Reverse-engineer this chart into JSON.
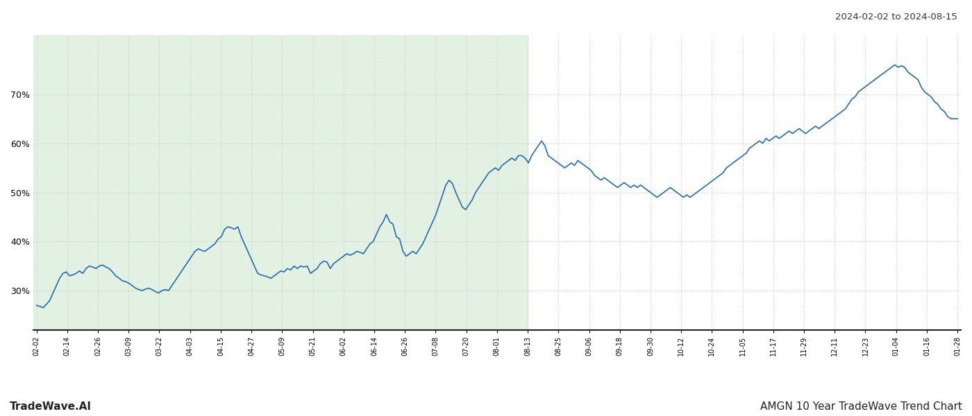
{
  "title_top_right": "2024-02-02 to 2024-08-15",
  "bottom_left": "TradeWave.AI",
  "bottom_right": "AMGN 10 Year TradeWave Trend Chart",
  "line_color": "#1f6cb0",
  "line_width": 1.2,
  "bg_color": "#ffffff",
  "grid_color": "#c8c8c8",
  "grid_style": "dotted",
  "shaded_region_color": "#d4ead4",
  "shaded_region_alpha": 0.65,
  "ylim_min": 22,
  "ylim_max": 82,
  "yticks": [
    30,
    40,
    50,
    60,
    70
  ],
  "xtick_labels": [
    "02-02",
    "02-14",
    "02-26",
    "03-09",
    "03-22",
    "04-03",
    "04-15",
    "04-27",
    "05-09",
    "05-21",
    "06-02",
    "06-14",
    "06-26",
    "07-08",
    "07-20",
    "08-01",
    "08-13",
    "08-25",
    "09-06",
    "09-18",
    "09-30",
    "10-12",
    "10-24",
    "11-05",
    "11-17",
    "11-29",
    "12-11",
    "12-23",
    "01-04",
    "01-16",
    "01-28"
  ],
  "shade_end_label": "08-13",
  "data_y": [
    27.0,
    26.8,
    26.5,
    27.2,
    28.0,
    29.5,
    31.0,
    32.5,
    33.5,
    33.8,
    33.0,
    33.2,
    33.5,
    34.0,
    33.5,
    34.5,
    35.0,
    34.8,
    34.5,
    35.0,
    35.2,
    34.8,
    34.5,
    33.8,
    33.0,
    32.5,
    32.0,
    31.8,
    31.5,
    31.0,
    30.5,
    30.2,
    30.0,
    30.3,
    30.5,
    30.2,
    29.8,
    29.5,
    30.0,
    30.2,
    30.0,
    31.0,
    32.0,
    33.0,
    34.0,
    35.0,
    36.0,
    37.0,
    38.0,
    38.5,
    38.2,
    38.0,
    38.5,
    39.0,
    39.5,
    40.5,
    41.0,
    42.5,
    43.0,
    42.8,
    42.5,
    43.0,
    41.0,
    39.5,
    38.0,
    36.5,
    35.0,
    33.5,
    33.2,
    33.0,
    32.8,
    32.5,
    33.0,
    33.5,
    34.0,
    33.8,
    34.5,
    34.2,
    35.0,
    34.5,
    35.0,
    34.8,
    35.0,
    33.5,
    34.0,
    34.5,
    35.5,
    36.0,
    35.8,
    34.5,
    35.5,
    36.0,
    36.5,
    37.0,
    37.5,
    37.2,
    37.5,
    38.0,
    37.8,
    37.5,
    38.5,
    39.5,
    40.0,
    41.5,
    43.0,
    44.0,
    45.5,
    44.0,
    43.5,
    41.0,
    40.5,
    38.0,
    37.0,
    37.5,
    38.0,
    37.5,
    38.5,
    39.5,
    41.0,
    42.5,
    44.0,
    45.5,
    47.5,
    49.5,
    51.5,
    52.5,
    51.8,
    50.0,
    48.5,
    47.0,
    46.5,
    47.5,
    48.5,
    50.0,
    51.0,
    52.0,
    53.0,
    54.0,
    54.5,
    55.0,
    54.5,
    55.5,
    56.0,
    56.5,
    57.0,
    56.5,
    57.5,
    57.5,
    57.0,
    56.0,
    57.5,
    58.5,
    59.5,
    60.5,
    59.5,
    57.5,
    57.0,
    56.5,
    56.0,
    55.5,
    55.0,
    55.5,
    56.0,
    55.5,
    56.5,
    56.0,
    55.5,
    55.0,
    54.5,
    53.5,
    53.0,
    52.5,
    53.0,
    52.5,
    52.0,
    51.5,
    51.0,
    51.5,
    52.0,
    51.5,
    51.0,
    51.5,
    51.0,
    51.5,
    51.0,
    50.5,
    50.0,
    49.5,
    49.0,
    49.5,
    50.0,
    50.5,
    51.0,
    50.5,
    50.0,
    49.5,
    49.0,
    49.5,
    49.0,
    49.5,
    50.0,
    50.5,
    51.0,
    51.5,
    52.0,
    52.5,
    53.0,
    53.5,
    54.0,
    55.0,
    55.5,
    56.0,
    56.5,
    57.0,
    57.5,
    58.0,
    59.0,
    59.5,
    60.0,
    60.5,
    60.0,
    61.0,
    60.5,
    61.0,
    61.5,
    61.0,
    61.5,
    62.0,
    62.5,
    62.0,
    62.5,
    63.0,
    62.5,
    62.0,
    62.5,
    63.0,
    63.5,
    63.0,
    63.5,
    64.0,
    64.5,
    65.0,
    65.5,
    66.0,
    66.5,
    67.0,
    68.0,
    69.0,
    69.5,
    70.5,
    71.0,
    71.5,
    72.0,
    72.5,
    73.0,
    73.5,
    74.0,
    74.5,
    75.0,
    75.5,
    76.0,
    75.5,
    75.8,
    75.5,
    74.5,
    74.0,
    73.5,
    73.0,
    71.5,
    70.5,
    70.0,
    69.5,
    68.5,
    68.0,
    67.0,
    66.5,
    65.5,
    65.0,
    65.0,
    65.0
  ]
}
